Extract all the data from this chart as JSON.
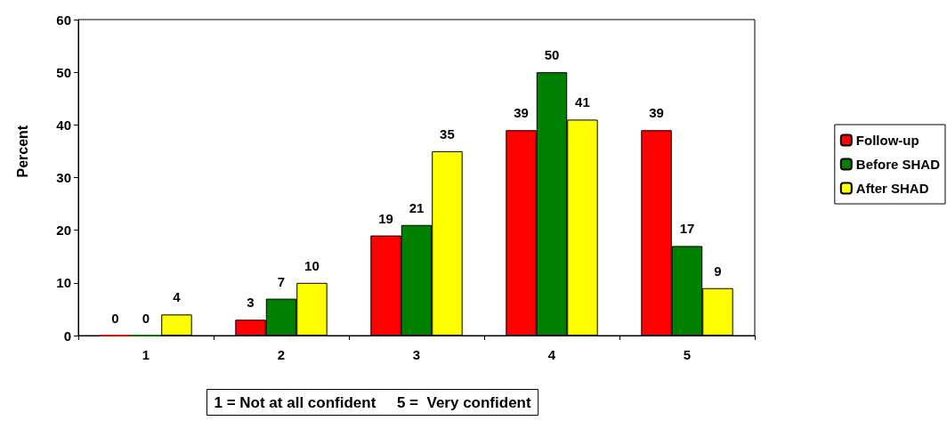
{
  "chart_data": {
    "type": "bar",
    "ylabel": "Percent",
    "categories": [
      "1",
      "2",
      "3",
      "4",
      "5"
    ],
    "series": [
      {
        "name": "Follow-up",
        "color": "#ff0000",
        "values": [
          0,
          3,
          19,
          39,
          39
        ]
      },
      {
        "name": "Before SHAD",
        "color": "#008000",
        "values": [
          0,
          7,
          21,
          50,
          17
        ]
      },
      {
        "name": "After SHAD",
        "color": "#ffff00",
        "values": [
          4,
          10,
          35,
          41,
          9
        ]
      }
    ],
    "ylim": [
      0,
      60
    ],
    "yticks": [
      0,
      10,
      20,
      30,
      40,
      50,
      60
    ],
    "data_labels": true,
    "legend": "right",
    "annotations": [
      "1 = Not at all confident     5 =  Very confident"
    ]
  }
}
